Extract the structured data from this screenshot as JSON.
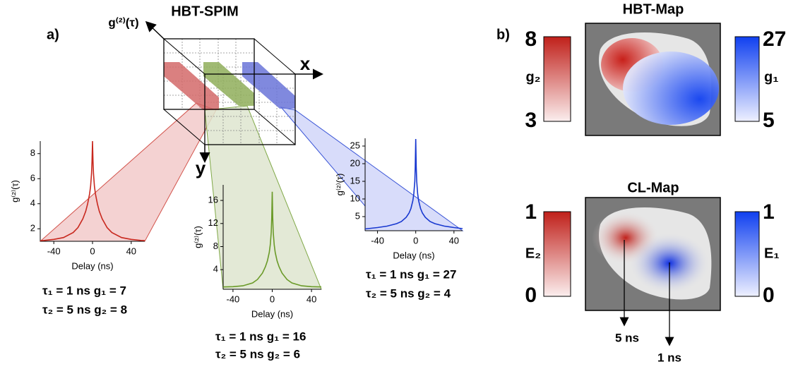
{
  "figure": {
    "panel_a": "a)",
    "panel_b": "b)",
    "cube_title": "HBT-SPIM",
    "cube_axis_t": "g⁽²⁾(τ)",
    "cube_axis_x": "x",
    "cube_axis_y": "y"
  },
  "chart_data": [
    {
      "type": "line",
      "xlabel": "Delay (ns)",
      "ylabel": "g⁽²⁾(τ)",
      "x": [
        -54,
        -50,
        -40,
        -30,
        -20,
        -15,
        -10,
        -7,
        -5,
        -3,
        -2,
        -1,
        -0.5,
        0,
        0.5,
        1,
        2,
        3,
        5,
        7,
        10,
        15,
        20,
        30,
        40,
        50,
        54
      ],
      "series": [
        {
          "color": "#c8281e",
          "values": [
            1.05,
            1.07,
            1.15,
            1.3,
            1.7,
            2.1,
            2.8,
            3.4,
            4.0,
            4.8,
            5.4,
            6.4,
            7.4,
            9,
            7.4,
            6.4,
            5.4,
            4.8,
            4.0,
            3.4,
            2.8,
            2.1,
            1.7,
            1.3,
            1.15,
            1.07,
            1.05
          ]
        }
      ],
      "xlim": [
        -54,
        54
      ],
      "ylim": [
        1,
        9
      ],
      "xticks": [
        -40,
        0,
        40
      ],
      "yticks": [
        2,
        4,
        6,
        8
      ],
      "notes": [
        "τ₁ = 1 ns g₁ = 7",
        "τ₂ = 5 ns g₂ = 8"
      ]
    },
    {
      "type": "line",
      "xlabel": "Delay (ns)",
      "ylabel": "g⁽²⁾(τ)",
      "x": [
        -50,
        -40,
        -30,
        -20,
        -15,
        -10,
        -7,
        -5,
        -3,
        -2,
        -1,
        -0.5,
        0,
        0.5,
        1,
        2,
        3,
        5,
        7,
        10,
        15,
        20,
        30,
        40,
        50
      ],
      "series": [
        {
          "color": "#6a9a28",
          "values": [
            1.0,
            1.05,
            1.2,
            1.7,
            2.3,
            3.4,
            4.5,
            5.5,
            7,
            8.3,
            10.5,
            13,
            17.5,
            13,
            10.5,
            8.3,
            7,
            5.5,
            4.5,
            3.4,
            2.3,
            1.7,
            1.2,
            1.05,
            1.0
          ]
        }
      ],
      "xlim": [
        -50,
        50
      ],
      "ylim": [
        0.6,
        18.7
      ],
      "xticks": [
        -40,
        0,
        40
      ],
      "yticks": [
        4,
        8,
        12,
        16
      ],
      "notes": [
        "τ₁ = 1 ns g₁ = 16",
        "τ₂ = 5 ns g₂ = 6"
      ]
    },
    {
      "type": "line",
      "xlabel": "Delay (ns)",
      "ylabel": "g⁽²⁾(τ)",
      "x": [
        -53,
        -50,
        -40,
        -30,
        -20,
        -15,
        -10,
        -7,
        -5,
        -3,
        -2,
        -1,
        -0.5,
        0,
        0.5,
        1,
        2,
        3,
        5,
        7,
        10,
        15,
        20,
        30,
        40,
        49
      ],
      "series": [
        {
          "color": "#1838d0",
          "values": [
            1.5,
            1.6,
            1.9,
            2.3,
            3,
            3.6,
            4.8,
            6,
            7.3,
            9.5,
            11.5,
            15,
            19,
            27,
            19,
            15,
            11.5,
            9.5,
            7.3,
            6,
            4.8,
            3.6,
            3,
            2.3,
            1.9,
            1.6
          ]
        }
      ],
      "xlim": [
        -53,
        49
      ],
      "ylim": [
        1,
        27.2
      ],
      "xticks": [
        -40,
        0,
        40
      ],
      "yticks": [
        5,
        10,
        15,
        20,
        25
      ],
      "notes": [
        "τ₁ = 1 ns g₁ = 27",
        "τ₂ = 5 ns g₂ = 4"
      ]
    }
  ],
  "maps": [
    {
      "title": "HBT-Map",
      "left_bar": {
        "label": "g₂",
        "max": 8,
        "min": 3
      },
      "right_bar": {
        "label": "g₁",
        "max": 27,
        "min": 5
      }
    },
    {
      "title": "CL-Map",
      "left_bar": {
        "label": "E₂",
        "max": 1,
        "min": 0
      },
      "right_bar": {
        "label": "E₁",
        "max": 1,
        "min": 0
      },
      "arrows": [
        "5 ns",
        "1 ns"
      ]
    }
  ]
}
